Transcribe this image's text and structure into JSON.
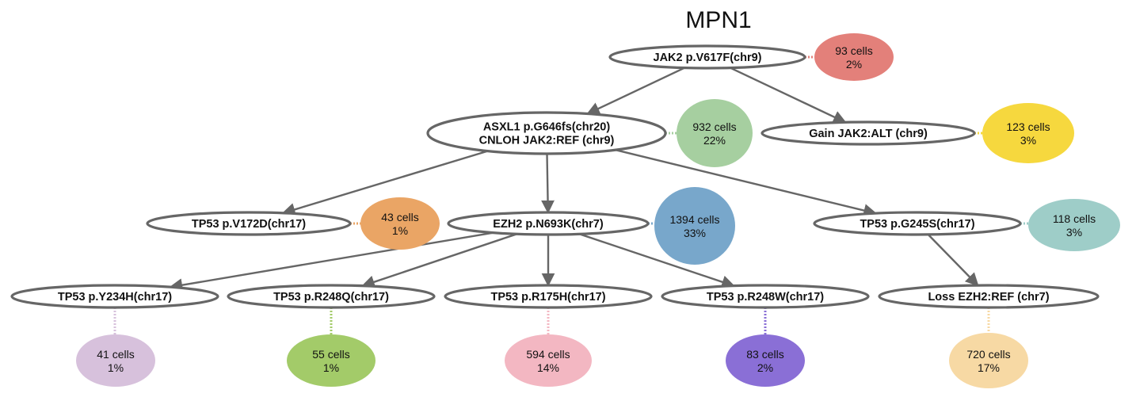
{
  "title": "MPN1",
  "edge_color": "#666666",
  "node_border_color": "#666666",
  "nodes": [
    {
      "id": "jak2",
      "lines": [
        "JAK2 p.V617F(chr9)"
      ],
      "cells": "93 cells",
      "percent": "2%",
      "color": "#e3807a"
    },
    {
      "id": "asxl1",
      "lines": [
        "ASXL1 p.G646fs(chr20)",
        "CNLOH JAK2:REF (chr9)"
      ],
      "cells": "932 cells",
      "percent": "22%",
      "color": "#a6cfa0"
    },
    {
      "id": "gainjak2",
      "lines": [
        "Gain JAK2:ALT (chr9)"
      ],
      "cells": "123 cells",
      "percent": "3%",
      "color": "#f6d83e"
    },
    {
      "id": "tp53v172d",
      "lines": [
        "TP53 p.V172D(chr17)"
      ],
      "cells": "43 cells",
      "percent": "1%",
      "color": "#eaa565"
    },
    {
      "id": "ezh2",
      "lines": [
        "EZH2 p.N693K(chr7)"
      ],
      "cells": "1394 cells",
      "percent": "33%",
      "color": "#78a7cb"
    },
    {
      "id": "tp53g245s",
      "lines": [
        "TP53 p.G245S(chr17)"
      ],
      "cells": "118 cells",
      "percent": "3%",
      "color": "#9ecdc8"
    },
    {
      "id": "tp53y234h",
      "lines": [
        "TP53 p.Y234H(chr17)"
      ],
      "cells": "41 cells",
      "percent": "1%",
      "color": "#d7c1dc"
    },
    {
      "id": "tp53r248q",
      "lines": [
        "TP53 p.R248Q(chr17)"
      ],
      "cells": "55 cells",
      "percent": "1%",
      "color": "#a3cb69"
    },
    {
      "id": "tp53r175h",
      "lines": [
        "TP53 p.R175H(chr17)"
      ],
      "cells": "594 cells",
      "percent": "14%",
      "color": "#f3b7c2"
    },
    {
      "id": "tp53r248w",
      "lines": [
        "TP53 p.R248W(chr17)"
      ],
      "cells": "83 cells",
      "percent": "2%",
      "color": "#8a6fd6"
    },
    {
      "id": "lossezh2",
      "lines": [
        "Loss EZH2:REF (chr7)"
      ],
      "cells": "720 cells",
      "percent": "17%",
      "color": "#f7d9a4"
    }
  ],
  "edges": [
    {
      "from": "jak2",
      "to": "asxl1"
    },
    {
      "from": "jak2",
      "to": "gainjak2"
    },
    {
      "from": "asxl1",
      "to": "tp53v172d"
    },
    {
      "from": "asxl1",
      "to": "ezh2"
    },
    {
      "from": "asxl1",
      "to": "tp53g245s"
    },
    {
      "from": "ezh2",
      "to": "tp53y234h"
    },
    {
      "from": "ezh2",
      "to": "tp53r248q"
    },
    {
      "from": "ezh2",
      "to": "tp53r175h"
    },
    {
      "from": "ezh2",
      "to": "tp53r248w"
    },
    {
      "from": "tp53g245s",
      "to": "lossezh2"
    }
  ]
}
